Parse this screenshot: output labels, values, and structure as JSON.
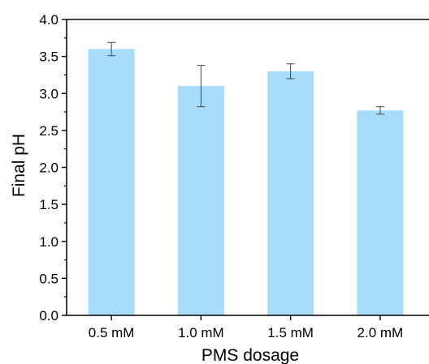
{
  "chart_data": {
    "type": "bar",
    "xlabel": "PMS dosage",
    "ylabel": "Final pH",
    "categories": [
      "0.5 mM",
      "1.0 mM",
      "1.5 mM",
      "2.0 mM"
    ],
    "values": [
      3.6,
      3.1,
      3.3,
      2.77
    ],
    "error": [
      0.09,
      0.28,
      0.1,
      0.05
    ],
    "ylim": [
      0.0,
      4.0
    ],
    "yticks": [
      "0.0",
      "0.5",
      "1.0",
      "1.5",
      "2.0",
      "2.5",
      "3.0",
      "3.5",
      "4.0"
    ],
    "bar_color": "#a8dcfb",
    "grid": false,
    "legend": "none"
  }
}
